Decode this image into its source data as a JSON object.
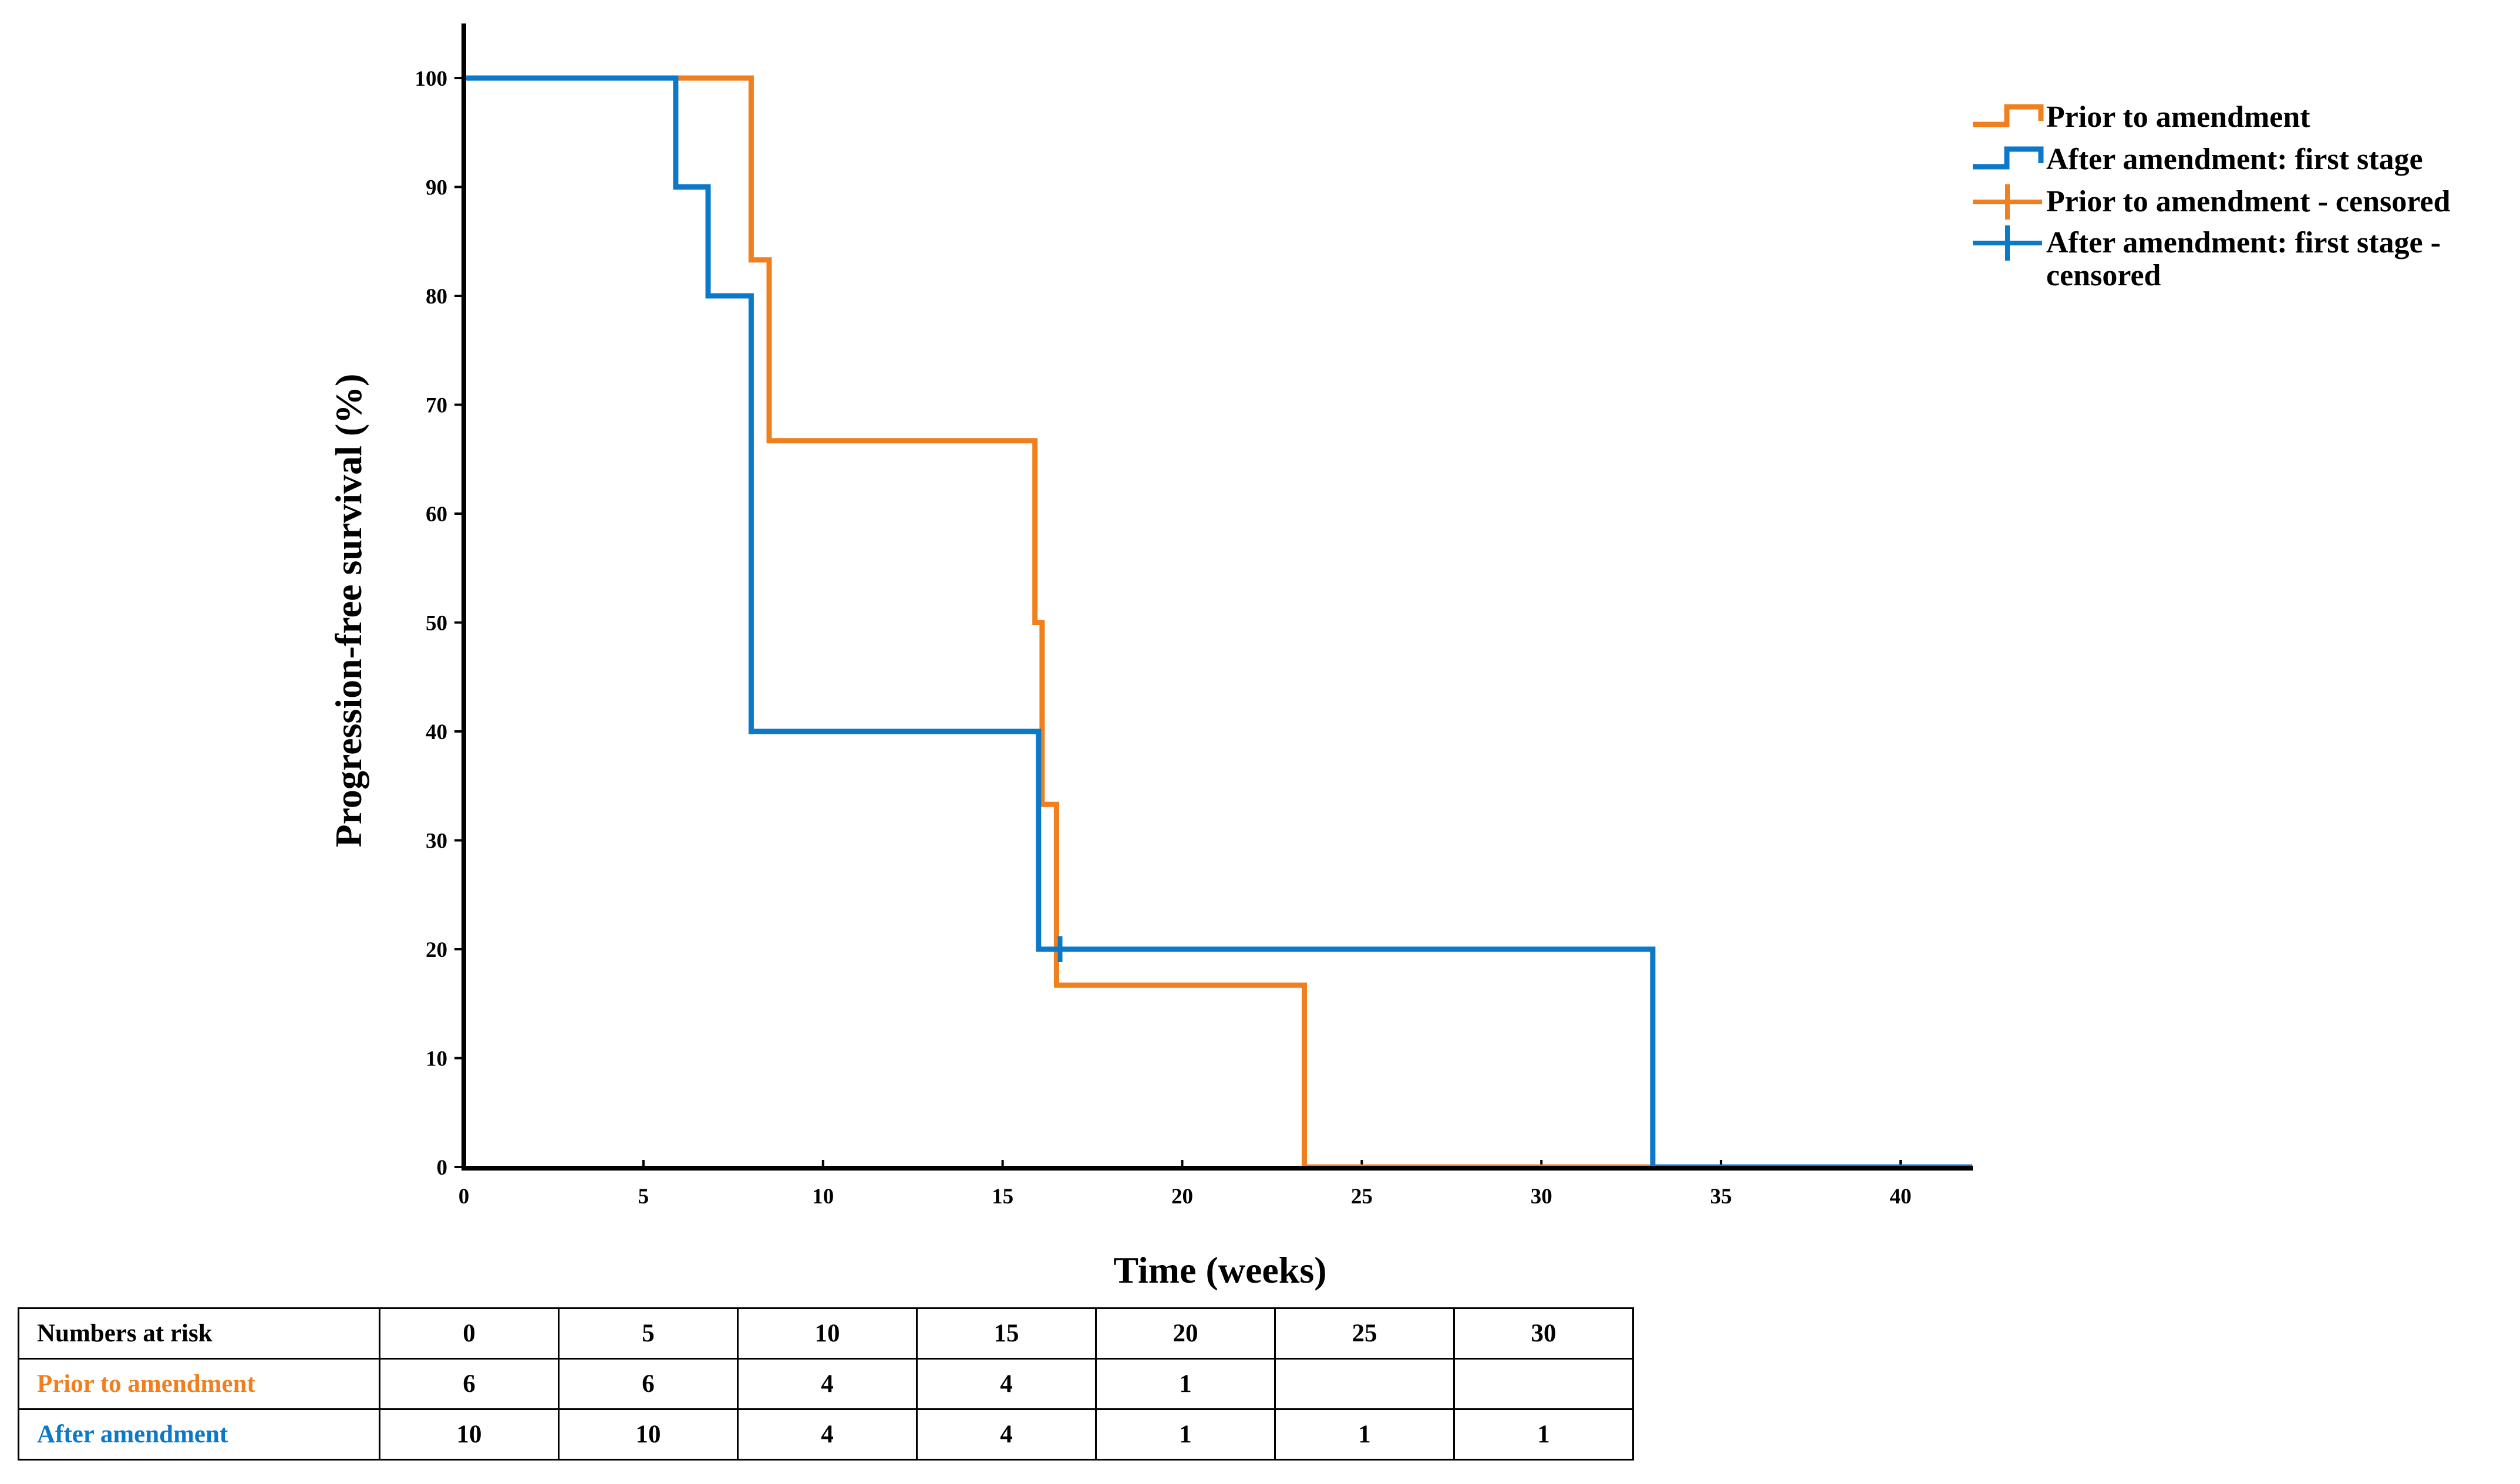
{
  "chart_data": {
    "type": "line",
    "subtype": "kaplan-meier step",
    "title": "",
    "xlabel": "Time (weeks)",
    "ylabel": "Progression-free survival (%)",
    "xlim": [
      0,
      42
    ],
    "ylim": [
      0,
      105
    ],
    "xticks": [
      0,
      5,
      10,
      15,
      20,
      25,
      30,
      35,
      40
    ],
    "yticks": [
      0,
      10,
      20,
      30,
      40,
      50,
      60,
      70,
      80,
      90,
      100
    ],
    "grid": false,
    "legend_position": "top-right",
    "colors": {
      "prior": "#F07F1E",
      "after": "#0B78C8"
    },
    "series": [
      {
        "name": "Prior to amendment",
        "color": "#F07F1E",
        "x": [
          0,
          8.0,
          8.0,
          8.5,
          8.5,
          15.9,
          15.9,
          16.1,
          16.1,
          16.5,
          16.5,
          23.4,
          23.4,
          42
        ],
        "y": [
          100,
          100,
          83.3,
          83.3,
          66.7,
          66.7,
          50,
          50,
          33.3,
          33.3,
          16.7,
          16.7,
          0,
          0
        ]
      },
      {
        "name": "After amendment: first stage",
        "color": "#0B78C8",
        "x": [
          0,
          5.9,
          5.9,
          6.8,
          6.8,
          8.0,
          8.0,
          16.0,
          16.0,
          33.1,
          33.1,
          42
        ],
        "y": [
          100,
          100,
          90,
          90,
          80,
          80,
          40,
          40,
          20,
          20,
          0,
          0
        ]
      }
    ],
    "censored": [
      {
        "series": "After amendment: first stage",
        "x": 16.6,
        "y": 20
      }
    ],
    "legend": [
      {
        "label": "Prior to amendment",
        "symbol": "step-orange"
      },
      {
        "label": "After amendment: first stage",
        "symbol": "step-blue"
      },
      {
        "label_line1": "Prior to amendment - censored",
        "label_line2": "",
        "symbol": "plus-orange"
      },
      {
        "label_line1": "After amendment: first stage -",
        "label_line2": "censored",
        "symbol": "plus-blue"
      }
    ]
  },
  "risk_table": {
    "header_label": "Numbers at risk",
    "times": [
      "0",
      "5",
      "10",
      "15",
      "20",
      "25",
      "30"
    ],
    "rows": [
      {
        "label": "Prior to amendment",
        "color": "#F07F1E",
        "values": [
          "6",
          "6",
          "4",
          "4",
          "1",
          "",
          ""
        ]
      },
      {
        "label": "After amendment",
        "color": "#0B78C8",
        "values": [
          "10",
          "10",
          "4",
          "4",
          "1",
          "1",
          "1"
        ]
      }
    ]
  }
}
